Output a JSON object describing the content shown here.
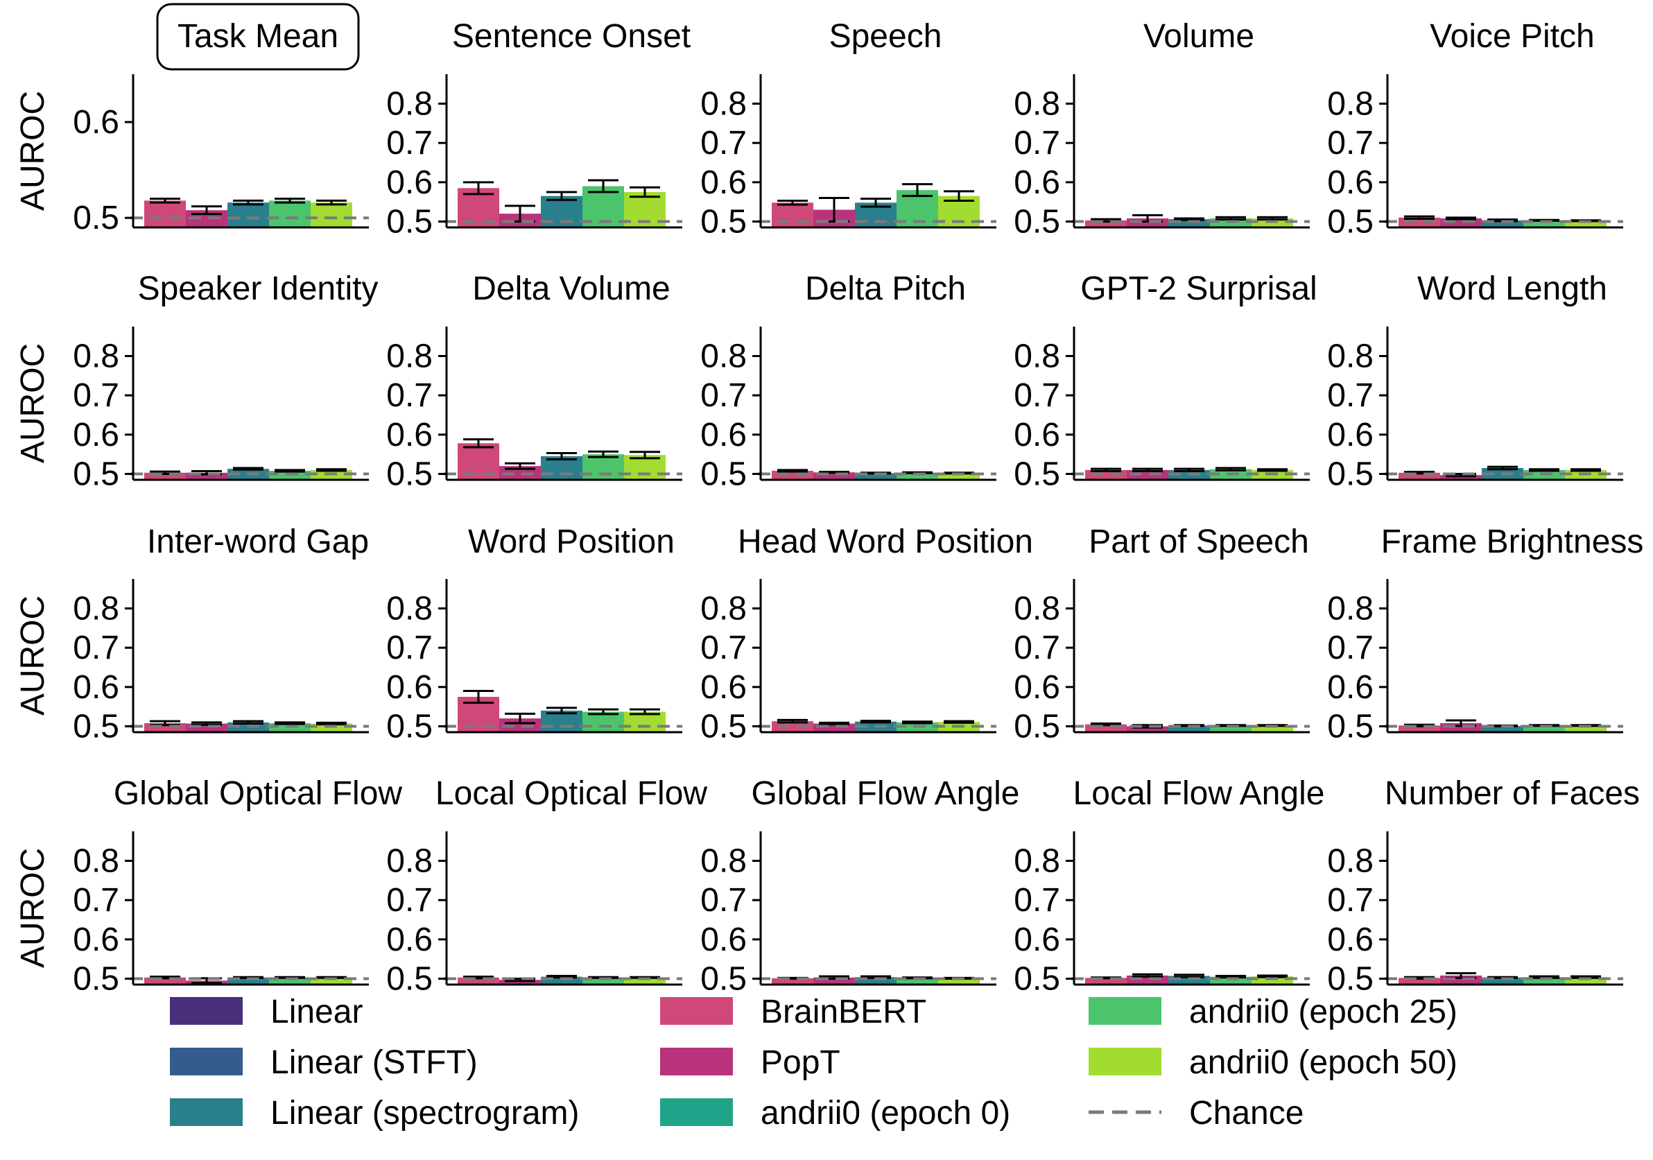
{
  "colors": {
    "chance_line": "#7a7a7a",
    "error_bar": "#000000",
    "axis": "#000000"
  },
  "chart_data": {
    "type": "bar",
    "layout": "grid 4x5 of small-multiple bar panels",
    "ylabel": "AUROC",
    "chance_level": 0.5,
    "legend": [
      {
        "label": "Linear",
        "color": "#482f7c",
        "kind": "bar"
      },
      {
        "label": "Linear (STFT)",
        "color": "#345c8c",
        "kind": "bar"
      },
      {
        "label": "Linear (spectrogram)",
        "color": "#2a7f8c",
        "kind": "bar"
      },
      {
        "label": "BrainBERT",
        "color": "#d0477a",
        "kind": "bar"
      },
      {
        "label": "PopT",
        "color": "#b8337c",
        "kind": "bar"
      },
      {
        "label": "andrii0 (epoch 0)",
        "color": "#21a38a",
        "kind": "bar"
      },
      {
        "label": "andrii0 (epoch 25)",
        "color": "#4cc46c",
        "kind": "bar"
      },
      {
        "label": "andrii0 (epoch 50)",
        "color": "#a2dc30",
        "kind": "bar"
      },
      {
        "label": "Chance",
        "color": "#7a7a7a",
        "kind": "dash"
      }
    ],
    "series_order": [
      "BrainBERT",
      "PopT",
      "Linear (spectrogram)",
      "andrii0 (epoch 25)",
      "andrii0 (epoch 50)"
    ],
    "panels": [
      {
        "title": "Task Mean",
        "boxed": true,
        "ylim": [
          0.49,
          0.65
        ],
        "yticks": [
          "0.5",
          "0.6"
        ],
        "values": [
          0.518,
          0.508,
          0.516,
          0.518,
          0.516
        ],
        "errors": [
          0.002,
          0.004,
          0.002,
          0.002,
          0.002
        ]
      },
      {
        "title": "Sentence Onset",
        "ylim": [
          0.485,
          0.875
        ],
        "yticks": [
          "0.5",
          "0.6",
          "0.7",
          "0.8"
        ],
        "values": [
          0.585,
          0.52,
          0.565,
          0.59,
          0.575
        ],
        "errors": [
          0.015,
          0.02,
          0.01,
          0.015,
          0.012
        ]
      },
      {
        "title": "Speech",
        "ylim": [
          0.485,
          0.875
        ],
        "yticks": [
          "0.5",
          "0.6",
          "0.7",
          "0.8"
        ],
        "values": [
          0.548,
          0.53,
          0.548,
          0.58,
          0.565
        ],
        "errors": [
          0.005,
          0.03,
          0.01,
          0.015,
          0.012
        ]
      },
      {
        "title": "Volume",
        "ylim": [
          0.485,
          0.875
        ],
        "yticks": [
          "0.5",
          "0.6",
          "0.7",
          "0.8"
        ],
        "values": [
          0.503,
          0.508,
          0.506,
          0.508,
          0.508
        ],
        "errors": [
          0.003,
          0.008,
          0.002,
          0.003,
          0.003
        ]
      },
      {
        "title": "Voice Pitch",
        "ylim": [
          0.485,
          0.875
        ],
        "yticks": [
          "0.5",
          "0.6",
          "0.7",
          "0.8"
        ],
        "values": [
          0.51,
          0.508,
          0.503,
          0.503,
          0.502
        ],
        "errors": [
          0.003,
          0.002,
          0.002,
          0.001,
          0.001
        ]
      },
      {
        "title": "Speaker Identity",
        "ylim": [
          0.485,
          0.875
        ],
        "yticks": [
          "0.5",
          "0.6",
          "0.7",
          "0.8"
        ],
        "values": [
          0.503,
          0.503,
          0.513,
          0.508,
          0.51
        ],
        "errors": [
          0.003,
          0.004,
          0.002,
          0.002,
          0.002
        ]
      },
      {
        "title": "Delta Volume",
        "ylim": [
          0.485,
          0.875
        ],
        "yticks": [
          "0.5",
          "0.6",
          "0.7",
          "0.8"
        ],
        "values": [
          0.578,
          0.52,
          0.545,
          0.55,
          0.548
        ],
        "errors": [
          0.01,
          0.007,
          0.008,
          0.007,
          0.008
        ]
      },
      {
        "title": "Delta Pitch",
        "ylim": [
          0.485,
          0.875
        ],
        "yticks": [
          "0.5",
          "0.6",
          "0.7",
          "0.8"
        ],
        "values": [
          0.508,
          0.504,
          0.502,
          0.503,
          0.502
        ],
        "errors": [
          0.002,
          0.001,
          0.001,
          0.001,
          0.001
        ]
      },
      {
        "title": "GPT-2 Surprisal",
        "ylim": [
          0.485,
          0.875
        ],
        "yticks": [
          "0.5",
          "0.6",
          "0.7",
          "0.8"
        ],
        "values": [
          0.51,
          0.51,
          0.51,
          0.512,
          0.51
        ],
        "errors": [
          0.003,
          0.003,
          0.003,
          0.003,
          0.002
        ]
      },
      {
        "title": "Word Length",
        "ylim": [
          0.485,
          0.875
        ],
        "yticks": [
          "0.5",
          "0.6",
          "0.7",
          "0.8"
        ],
        "values": [
          0.503,
          0.497,
          0.515,
          0.51,
          0.51
        ],
        "errors": [
          0.002,
          0.003,
          0.003,
          0.002,
          0.002
        ]
      },
      {
        "title": "Inter-word Gap",
        "ylim": [
          0.485,
          0.875
        ],
        "yticks": [
          "0.5",
          "0.6",
          "0.7",
          "0.8"
        ],
        "values": [
          0.508,
          0.507,
          0.51,
          0.508,
          0.507
        ],
        "errors": [
          0.005,
          0.003,
          0.003,
          0.002,
          0.002
        ]
      },
      {
        "title": "Word Position",
        "ylim": [
          0.485,
          0.875
        ],
        "yticks": [
          "0.5",
          "0.6",
          "0.7",
          "0.8"
        ],
        "values": [
          0.575,
          0.52,
          0.54,
          0.537,
          0.537
        ],
        "errors": [
          0.015,
          0.012,
          0.007,
          0.006,
          0.006
        ]
      },
      {
        "title": "Head Word Position",
        "ylim": [
          0.485,
          0.875
        ],
        "yticks": [
          "0.5",
          "0.6",
          "0.7",
          "0.8"
        ],
        "values": [
          0.513,
          0.507,
          0.512,
          0.51,
          0.511
        ],
        "errors": [
          0.003,
          0.002,
          0.002,
          0.002,
          0.002
        ]
      },
      {
        "title": "Part of Speech",
        "ylim": [
          0.485,
          0.875
        ],
        "yticks": [
          "0.5",
          "0.6",
          "0.7",
          "0.8"
        ],
        "values": [
          0.505,
          0.5,
          0.502,
          0.502,
          0.502
        ],
        "errors": [
          0.002,
          0.003,
          0.001,
          0.001,
          0.001
        ]
      },
      {
        "title": "Frame Brightness",
        "ylim": [
          0.485,
          0.875
        ],
        "yticks": [
          "0.5",
          "0.6",
          "0.7",
          "0.8"
        ],
        "values": [
          0.502,
          0.508,
          0.501,
          0.502,
          0.502
        ],
        "errors": [
          0.002,
          0.007,
          0.001,
          0.001,
          0.001
        ]
      },
      {
        "title": "Global Optical Flow",
        "ylim": [
          0.485,
          0.875
        ],
        "yticks": [
          "0.5",
          "0.6",
          "0.7",
          "0.8"
        ],
        "values": [
          0.503,
          0.495,
          0.503,
          0.503,
          0.503
        ],
        "errors": [
          0.002,
          0.006,
          0.001,
          0.001,
          0.001
        ]
      },
      {
        "title": "Local Optical Flow",
        "ylim": [
          0.485,
          0.875
        ],
        "yticks": [
          "0.5",
          "0.6",
          "0.7",
          "0.8"
        ],
        "values": [
          0.503,
          0.497,
          0.505,
          0.503,
          0.503
        ],
        "errors": [
          0.002,
          0.003,
          0.002,
          0.001,
          0.001
        ]
      },
      {
        "title": "Global Flow Angle",
        "ylim": [
          0.485,
          0.875
        ],
        "yticks": [
          "0.5",
          "0.6",
          "0.7",
          "0.8"
        ],
        "values": [
          0.501,
          0.503,
          0.504,
          0.502,
          0.501
        ],
        "errors": [
          0.001,
          0.003,
          0.002,
          0.001,
          0.001
        ]
      },
      {
        "title": "Local Flow Angle",
        "ylim": [
          0.485,
          0.875
        ],
        "yticks": [
          "0.5",
          "0.6",
          "0.7",
          "0.8"
        ],
        "values": [
          0.502,
          0.508,
          0.507,
          0.505,
          0.506
        ],
        "errors": [
          0.001,
          0.003,
          0.003,
          0.002,
          0.002
        ]
      },
      {
        "title": "Number of Faces",
        "ylim": [
          0.485,
          0.875
        ],
        "yticks": [
          "0.5",
          "0.6",
          "0.7",
          "0.8"
        ],
        "values": [
          0.502,
          0.508,
          0.503,
          0.504,
          0.504
        ],
        "errors": [
          0.002,
          0.006,
          0.001,
          0.002,
          0.002
        ]
      }
    ]
  }
}
